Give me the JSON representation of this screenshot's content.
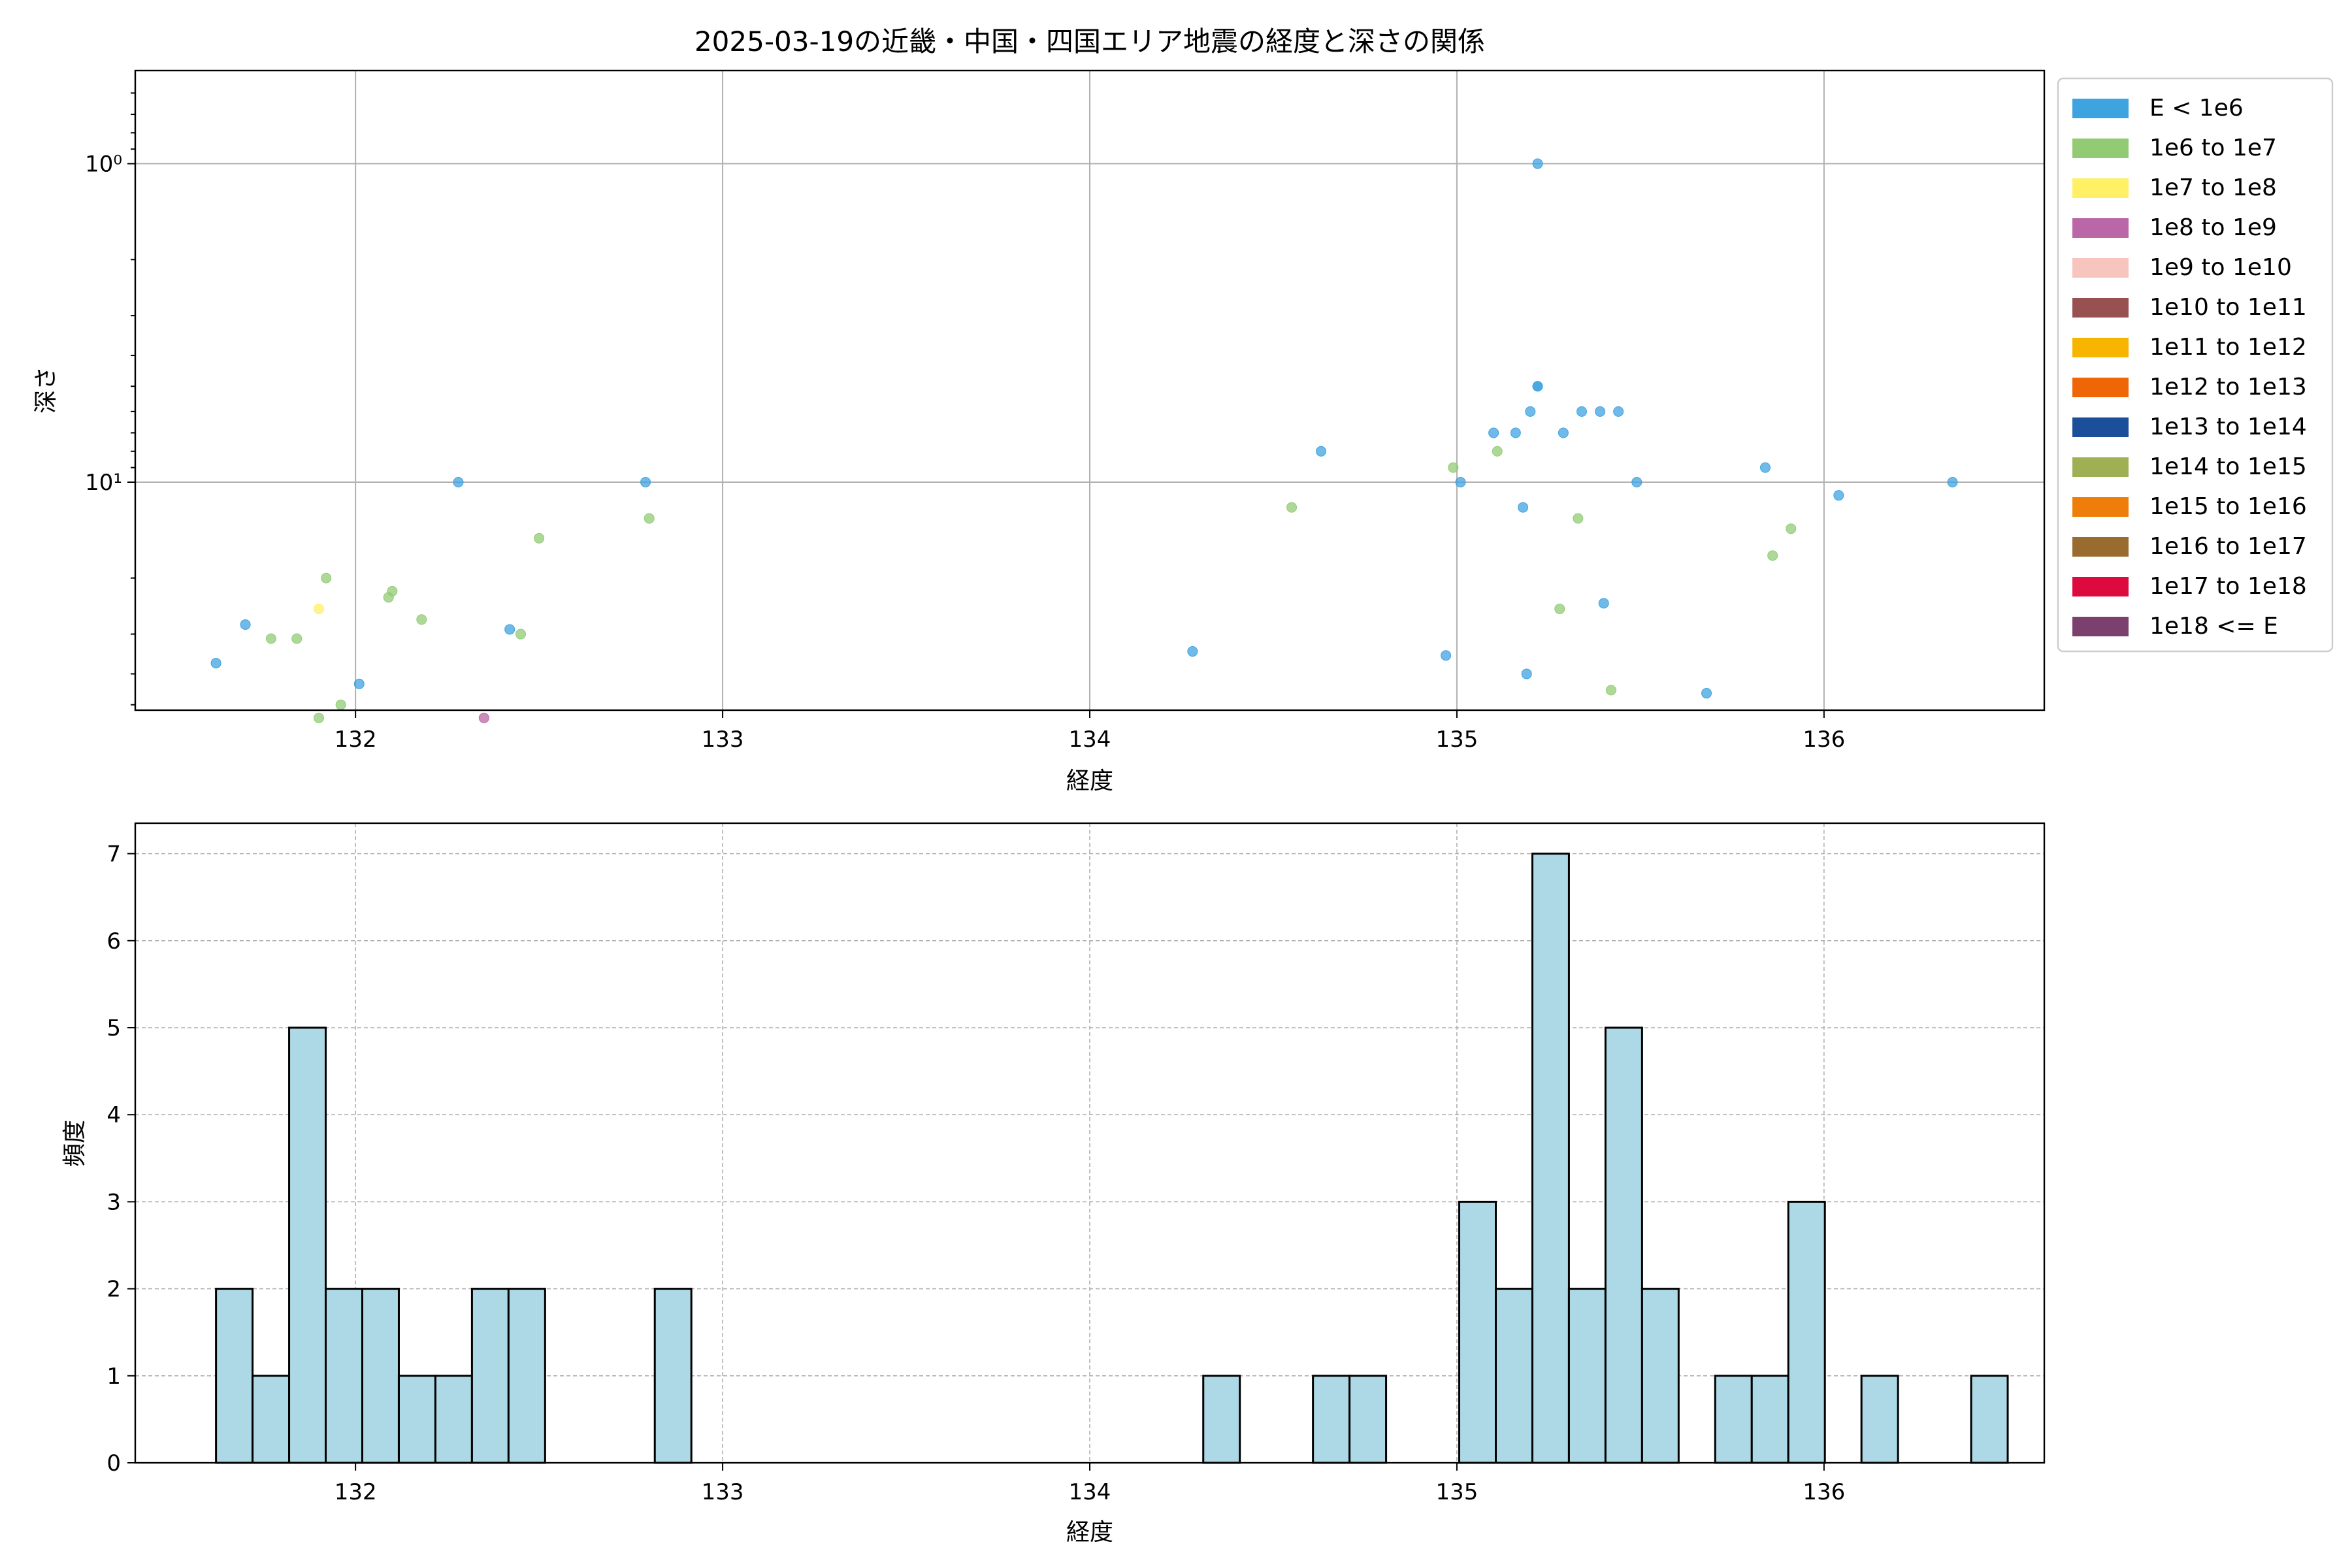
{
  "chart_data": [
    {
      "type": "scatter",
      "title": "2025-03-19の近畿・中国・四国エリア地震の経度と深さの関係",
      "xlabel": "経度",
      "ylabel": "深さ",
      "xlim": [
        131.4,
        136.6
      ],
      "ylim": [
        0.51,
        52
      ],
      "yscale": "log",
      "invert_y": true,
      "x_ticks": [
        132,
        133,
        134,
        135,
        136
      ],
      "x_tick_labels": [
        "132",
        "133",
        "134",
        "135",
        "136"
      ],
      "y_ticks": [
        1,
        10
      ],
      "y_tick_labels": [
        "10⁰",
        "10¹"
      ],
      "grid": true,
      "legend": {
        "placement": "outside upper right",
        "entries": [
          {
            "label": "E < 1e6",
            "color": "#3fa3e0"
          },
          {
            "label": "1e6 to 1e7",
            "color": "#93cb75"
          },
          {
            "label": "1e7 to 1e8",
            "color": "#fff066"
          },
          {
            "label": "1e8 to 1e9",
            "color": "#bb66a6"
          },
          {
            "label": "1e9 to 1e10",
            "color": "#f8c4be"
          },
          {
            "label": "1e10 to 1e11",
            "color": "#995050"
          },
          {
            "label": "1e11 to 1e12",
            "color": "#f7b500"
          },
          {
            "label": "1e12 to 1e13",
            "color": "#ee6605"
          },
          {
            "label": "1e13 to 1e14",
            "color": "#1b4f99"
          },
          {
            "label": "1e14 to 1e15",
            "color": "#9fb054"
          },
          {
            "label": "1e15 to 1e16",
            "color": "#ef7d0a"
          },
          {
            "label": "1e16 to 1e17",
            "color": "#9a6b2e"
          },
          {
            "label": "1e17 to 1e18",
            "color": "#dc0a3e"
          },
          {
            "label": "1e18 <= E",
            "color": "#7b406e"
          }
        ]
      },
      "series": [
        {
          "name": "E < 1e6",
          "color": "#3fa3e0",
          "points": [
            [
              131.62,
              37
            ],
            [
              131.7,
              28
            ],
            [
              132.01,
              43
            ],
            [
              132.28,
              10
            ],
            [
              132.42,
              29
            ],
            [
              132.79,
              10
            ],
            [
              134.28,
              34
            ],
            [
              134.63,
              8
            ],
            [
              134.97,
              35
            ],
            [
              135.01,
              10
            ],
            [
              135.1,
              7
            ],
            [
              135.16,
              7
            ],
            [
              135.18,
              12
            ],
            [
              135.19,
              40
            ],
            [
              135.2,
              6
            ],
            [
              135.22,
              5
            ],
            [
              135.22,
              5
            ],
            [
              135.22,
              1
            ],
            [
              135.29,
              7
            ],
            [
              135.34,
              6
            ],
            [
              135.39,
              6
            ],
            [
              135.4,
              24
            ],
            [
              135.44,
              6
            ],
            [
              135.49,
              10
            ],
            [
              135.68,
              46
            ],
            [
              135.84,
              9
            ],
            [
              136.04,
              11
            ],
            [
              136.35,
              10
            ]
          ]
        },
        {
          "name": "1e6 to 1e7",
          "color": "#93cb75",
          "points": [
            [
              131.77,
              31
            ],
            [
              131.84,
              31
            ],
            [
              131.9,
              55
            ],
            [
              131.92,
              20
            ],
            [
              131.96,
              50
            ],
            [
              132.09,
              23
            ],
            [
              132.1,
              22
            ],
            [
              132.18,
              27
            ],
            [
              132.45,
              30
            ],
            [
              132.5,
              15
            ],
            [
              132.8,
              13
            ],
            [
              134.55,
              12
            ],
            [
              134.99,
              9
            ],
            [
              135.11,
              8
            ],
            [
              135.28,
              25
            ],
            [
              135.33,
              13
            ],
            [
              135.42,
              45
            ],
            [
              135.86,
              17
            ],
            [
              135.91,
              14
            ]
          ]
        },
        {
          "name": "1e7 to 1e8",
          "color": "#fff066",
          "points": [
            [
              131.9,
              25
            ]
          ]
        },
        {
          "name": "1e8 to 1e9",
          "color": "#bb66a6",
          "points": [
            [
              132.35,
              55
            ]
          ]
        }
      ]
    },
    {
      "type": "bar",
      "title": "",
      "xlabel": "経度",
      "ylabel": "頻度",
      "xlim": [
        131.4,
        136.6
      ],
      "ylim": [
        0,
        7.35
      ],
      "x_ticks": [
        132,
        133,
        134,
        135,
        136
      ],
      "x_tick_labels": [
        "132",
        "133",
        "134",
        "135",
        "136"
      ],
      "y_ticks": [
        0,
        1,
        2,
        3,
        4,
        5,
        6,
        7
      ],
      "y_tick_labels": [
        "0",
        "1",
        "2",
        "3",
        "4",
        "5",
        "6",
        "7"
      ],
      "grid": true,
      "color": "#add8e6",
      "bin_start": 131.62,
      "bin_width": 0.0996,
      "values": [
        2,
        1,
        5,
        2,
        2,
        1,
        1,
        2,
        2,
        0,
        0,
        0,
        2,
        0,
        0,
        0,
        0,
        0,
        0,
        0,
        0,
        0,
        0,
        0,
        0,
        0,
        0,
        1,
        0,
        0,
        1,
        1,
        0,
        0,
        3,
        2,
        7,
        2,
        5,
        2,
        0,
        1,
        1,
        3,
        0,
        1,
        0,
        0,
        1
      ]
    }
  ]
}
